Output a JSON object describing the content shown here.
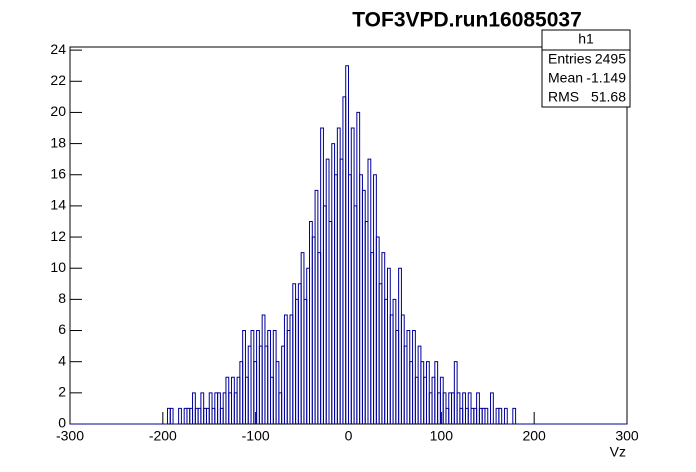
{
  "chart_data": {
    "type": "histogram",
    "title": "TOF3VPD.run16085037",
    "x_label": "Vz",
    "bins": [
      -300,
      -297,
      -294,
      -291,
      -288,
      -285,
      -282,
      -279,
      -276,
      -273,
      -270,
      -267,
      -264,
      -261,
      -258,
      -255,
      -252,
      -249,
      -246,
      -243,
      -240,
      -237,
      -234,
      -231,
      -228,
      -225,
      -222,
      -219,
      -216,
      -213,
      -210,
      -207,
      -204,
      -201,
      -198,
      -195,
      -192,
      -189,
      -186,
      -183,
      -180,
      -177,
      -174,
      -171,
      -168,
      -165,
      -162,
      -159,
      -156,
      -153,
      -150,
      -147,
      -144,
      -141,
      -138,
      -135,
      -132,
      -129,
      -126,
      -123,
      -120,
      -117,
      -114,
      -111,
      -108,
      -105,
      -102,
      -99,
      -96,
      -93,
      -90,
      -87,
      -84,
      -81,
      -78,
      -75,
      -72,
      -69,
      -66,
      -63,
      -60,
      -57,
      -54,
      -51,
      -48,
      -45,
      -42,
      -39,
      -36,
      -33,
      -30,
      -27,
      -24,
      -21,
      -18,
      -15,
      -12,
      -9,
      -6,
      -3,
      0,
      3,
      6,
      9,
      12,
      15,
      18,
      21,
      24,
      27,
      30,
      33,
      36,
      39,
      42,
      45,
      48,
      51,
      54,
      57,
      60,
      63,
      66,
      69,
      72,
      75,
      78,
      81,
      84,
      87,
      90,
      93,
      96,
      99,
      102,
      105,
      108,
      111,
      114,
      117,
      120,
      123,
      126,
      129,
      132,
      135,
      138,
      141,
      144,
      147,
      150,
      153,
      156,
      159,
      162,
      165,
      168,
      171,
      174,
      177,
      180,
      183,
      186,
      189,
      192,
      195,
      198,
      201,
      204,
      207,
      210,
      213,
      216,
      219,
      222,
      225,
      228,
      231,
      234,
      237,
      240,
      243,
      246,
      249,
      252,
      255,
      258,
      261,
      264,
      267,
      270,
      273,
      276,
      279,
      282,
      285,
      288,
      291,
      294,
      297,
      300
    ],
    "values": [
      0,
      0,
      0,
      0,
      0,
      0,
      0,
      0,
      0,
      0,
      0,
      0,
      0,
      0,
      0,
      0,
      0,
      0,
      0,
      0,
      0,
      0,
      0,
      0,
      0,
      0,
      0,
      0,
      0,
      0,
      0,
      0,
      0,
      0,
      0,
      1,
      1,
      0,
      0,
      1,
      0,
      1,
      1,
      1,
      2,
      1,
      1,
      2,
      1,
      1,
      2,
      1,
      2,
      2,
      1,
      2,
      3,
      2,
      3,
      2,
      3,
      4,
      6,
      3,
      5,
      6,
      4,
      6,
      5,
      7,
      5,
      6,
      3,
      6,
      4,
      2,
      5,
      7,
      6,
      7,
      9,
      8,
      9,
      11,
      8,
      10,
      13,
      12,
      15,
      11,
      19,
      14,
      17,
      13,
      18,
      16,
      19,
      17,
      21,
      23,
      16,
      19,
      14,
      20,
      16,
      15,
      13,
      17,
      11,
      16,
      12,
      9,
      11,
      8,
      10,
      7,
      8,
      6,
      10,
      7,
      5,
      6,
      4,
      6,
      3,
      5,
      4,
      3,
      4,
      2,
      3,
      4,
      2,
      3,
      2,
      1,
      2,
      2,
      4,
      2,
      1,
      2,
      1,
      2,
      1,
      1,
      2,
      1,
      1,
      1,
      0,
      2,
      0,
      1,
      1,
      0,
      1,
      0,
      0,
      1,
      0,
      0,
      0,
      0,
      0,
      0,
      0,
      0,
      0,
      0,
      0,
      0,
      0,
      0,
      0,
      0,
      0,
      0,
      0,
      0,
      0,
      0,
      0,
      0,
      0,
      0,
      0,
      0,
      0,
      0,
      0,
      0,
      0,
      0,
      0,
      0,
      0,
      0,
      0,
      0
    ],
    "color": "#000099",
    "xlim": [
      -300,
      300
    ],
    "xticks": [
      -300,
      -200,
      -100,
      0,
      100,
      200,
      300
    ],
    "ylim": [
      0,
      24.2
    ],
    "yticks": [
      0,
      2,
      4,
      6,
      8,
      10,
      12,
      14,
      16,
      18,
      20,
      22,
      24
    ],
    "stats": {
      "title": "h1",
      "rows": [
        [
          "Entries",
          2495
        ],
        [
          "Mean",
          -1.149
        ],
        [
          "RMS",
          51.68
        ]
      ]
    }
  }
}
